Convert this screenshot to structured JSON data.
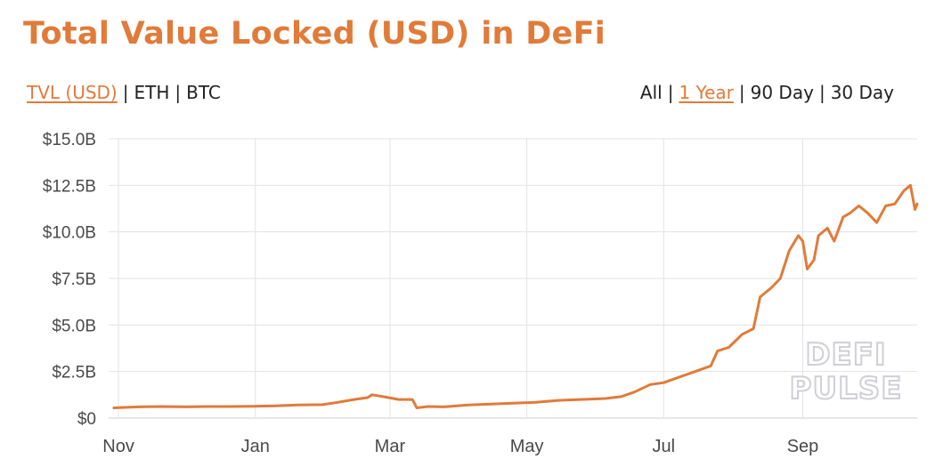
{
  "header": {
    "title": "Total Value Locked (USD) in DeFi"
  },
  "metric_toggle": [
    {
      "label": "TVL (USD)",
      "active": true
    },
    {
      "label": "ETH",
      "active": false
    },
    {
      "label": "BTC",
      "active": false
    }
  ],
  "range_toggle": [
    {
      "label": "All",
      "active": false
    },
    {
      "label": "1 Year",
      "active": true
    },
    {
      "label": "90 Day",
      "active": false
    },
    {
      "label": "30 Day",
      "active": false
    }
  ],
  "colors": {
    "accent": "#e07b39",
    "line": "#e07b39",
    "grid": "#e3e3e8",
    "axis_text": "#4a4a4a"
  },
  "watermark": {
    "line1": "DEFI",
    "line2": "PULSE"
  },
  "chart_data": {
    "type": "line",
    "title": "Total Value Locked (USD) in DeFi",
    "xlabel": "",
    "ylabel": "",
    "y_ticks": [
      "$0",
      "$2.5B",
      "$5.0B",
      "$7.5B",
      "$10.0B",
      "$12.5B",
      "$15.0B"
    ],
    "ylim": [
      0,
      15
    ],
    "y_unit": "billion USD",
    "x_ticks": [
      "Nov",
      "Jan",
      "Mar",
      "May",
      "Jul",
      "Sep"
    ],
    "x_range": [
      "2019-10-30",
      "2020-10-22"
    ],
    "grid": true,
    "series": [
      {
        "values": [
          [
            "2019-10-30",
            0.55
          ],
          [
            "2019-11-10",
            0.6
          ],
          [
            "2019-11-20",
            0.62
          ],
          [
            "2019-12-01",
            0.6
          ],
          [
            "2019-12-10",
            0.62
          ],
          [
            "2019-12-20",
            0.62
          ],
          [
            "2019-12-31",
            0.63
          ],
          [
            "2020-01-10",
            0.66
          ],
          [
            "2020-01-20",
            0.7
          ],
          [
            "2020-01-31",
            0.72
          ],
          [
            "2020-02-07",
            0.85
          ],
          [
            "2020-02-14",
            1.0
          ],
          [
            "2020-02-20",
            1.1
          ],
          [
            "2020-02-22",
            1.25
          ],
          [
            "2020-02-27",
            1.15
          ],
          [
            "2020-03-05",
            1.0
          ],
          [
            "2020-03-11",
            1.0
          ],
          [
            "2020-03-13",
            0.55
          ],
          [
            "2020-03-18",
            0.62
          ],
          [
            "2020-03-25",
            0.6
          ],
          [
            "2020-04-05",
            0.7
          ],
          [
            "2020-04-15",
            0.75
          ],
          [
            "2020-04-25",
            0.8
          ],
          [
            "2020-05-05",
            0.85
          ],
          [
            "2020-05-15",
            0.95
          ],
          [
            "2020-05-25",
            1.0
          ],
          [
            "2020-06-05",
            1.05
          ],
          [
            "2020-06-12",
            1.15
          ],
          [
            "2020-06-18",
            1.4
          ],
          [
            "2020-06-25",
            1.8
          ],
          [
            "2020-07-01",
            1.9
          ],
          [
            "2020-07-08",
            2.2
          ],
          [
            "2020-07-15",
            2.5
          ],
          [
            "2020-07-22",
            2.8
          ],
          [
            "2020-07-25",
            3.6
          ],
          [
            "2020-07-30",
            3.8
          ],
          [
            "2020-08-05",
            4.5
          ],
          [
            "2020-08-10",
            4.8
          ],
          [
            "2020-08-13",
            6.5
          ],
          [
            "2020-08-18",
            7.0
          ],
          [
            "2020-08-22",
            7.5
          ],
          [
            "2020-08-26",
            9.0
          ],
          [
            "2020-08-30",
            9.8
          ],
          [
            "2020-09-01",
            9.5
          ],
          [
            "2020-09-03",
            8.0
          ],
          [
            "2020-09-06",
            8.5
          ],
          [
            "2020-09-08",
            9.8
          ],
          [
            "2020-09-12",
            10.2
          ],
          [
            "2020-09-15",
            9.5
          ],
          [
            "2020-09-19",
            10.8
          ],
          [
            "2020-09-22",
            11.0
          ],
          [
            "2020-09-26",
            11.4
          ],
          [
            "2020-09-30",
            11.0
          ],
          [
            "2020-10-04",
            10.5
          ],
          [
            "2020-10-08",
            11.4
          ],
          [
            "2020-10-12",
            11.5
          ],
          [
            "2020-10-16",
            12.2
          ],
          [
            "2020-10-19",
            12.5
          ],
          [
            "2020-10-21",
            11.2
          ],
          [
            "2020-10-22",
            11.5
          ]
        ]
      }
    ]
  }
}
